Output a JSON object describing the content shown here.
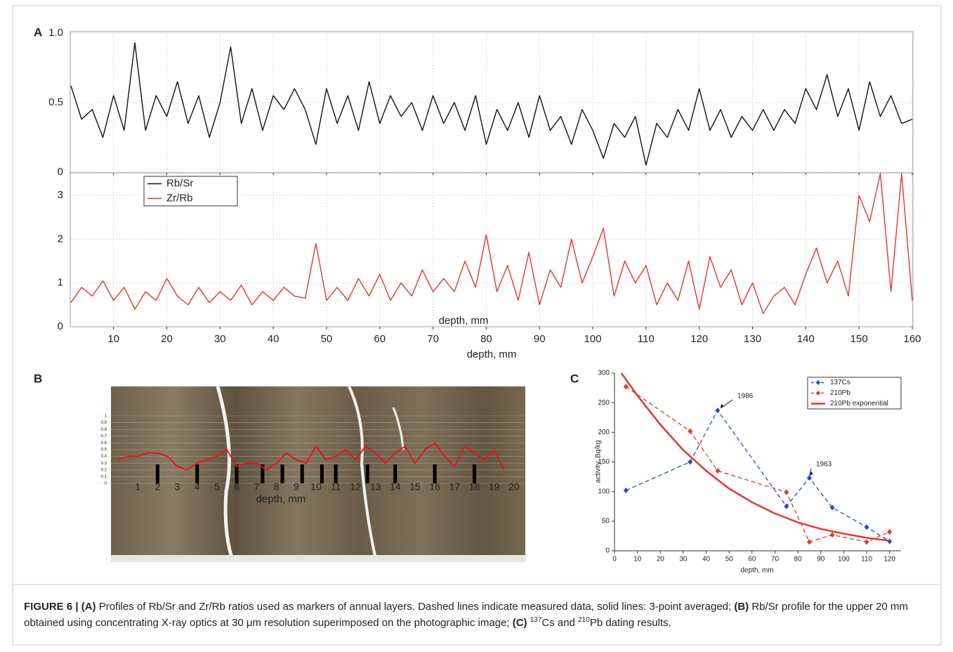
{
  "chart_data": [
    {
      "type": "line",
      "panel": "A",
      "x": [
        2,
        4,
        6,
        8,
        10,
        12,
        14,
        16,
        18,
        20,
        22,
        24,
        26,
        28,
        30,
        32,
        34,
        36,
        38,
        40,
        42,
        44,
        46,
        48,
        50,
        52,
        54,
        56,
        58,
        60,
        62,
        64,
        66,
        68,
        70,
        72,
        74,
        76,
        78,
        80,
        82,
        84,
        86,
        88,
        90,
        92,
        94,
        96,
        98,
        100,
        102,
        104,
        106,
        108,
        110,
        112,
        114,
        116,
        118,
        120,
        122,
        124,
        126,
        128,
        130,
        132,
        134,
        136,
        138,
        140,
        142,
        144,
        146,
        148,
        150,
        152,
        154,
        156,
        158,
        160
      ],
      "series": [
        {
          "name": "Rb/Sr",
          "color": "#111111",
          "values": [
            0.62,
            0.38,
            0.45,
            0.25,
            0.55,
            0.3,
            0.93,
            0.3,
            0.55,
            0.4,
            0.65,
            0.35,
            0.55,
            0.25,
            0.5,
            0.9,
            0.35,
            0.6,
            0.3,
            0.55,
            0.45,
            0.6,
            0.45,
            0.2,
            0.6,
            0.35,
            0.55,
            0.3,
            0.65,
            0.35,
            0.55,
            0.4,
            0.5,
            0.3,
            0.55,
            0.35,
            0.5,
            0.3,
            0.55,
            0.2,
            0.45,
            0.3,
            0.5,
            0.25,
            0.55,
            0.3,
            0.4,
            0.2,
            0.45,
            0.3,
            0.1,
            0.35,
            0.25,
            0.4,
            0.05,
            0.35,
            0.25,
            0.45,
            0.3,
            0.6,
            0.3,
            0.45,
            0.25,
            0.4,
            0.3,
            0.45,
            0.3,
            0.45,
            0.35,
            0.6,
            0.45,
            0.7,
            0.4,
            0.6,
            0.3,
            0.65,
            0.4,
            0.55,
            0.35,
            0.38
          ]
        }
      ],
      "xlim": [
        2,
        160
      ],
      "ylim": [
        0,
        1
      ],
      "yticks": [
        0,
        0.5,
        {
          "value": 1,
          "label": "1.0"
        }
      ],
      "grid": true
    },
    {
      "type": "line",
      "x": [
        2,
        4,
        6,
        8,
        10,
        12,
        14,
        16,
        18,
        20,
        22,
        24,
        26,
        28,
        30,
        32,
        34,
        36,
        38,
        40,
        42,
        44,
        46,
        48,
        50,
        52,
        54,
        56,
        58,
        60,
        62,
        64,
        66,
        68,
        70,
        72,
        74,
        76,
        78,
        80,
        82,
        84,
        86,
        88,
        90,
        92,
        94,
        96,
        98,
        100,
        102,
        104,
        106,
        108,
        110,
        112,
        114,
        116,
        118,
        120,
        122,
        124,
        126,
        128,
        130,
        132,
        134,
        136,
        138,
        140,
        142,
        144,
        146,
        148,
        150,
        152,
        154,
        156,
        158,
        160
      ],
      "series": [
        {
          "name": "Zr/Rb",
          "color": "#e2382b",
          "values": [
            0.55,
            0.9,
            0.7,
            1.05,
            0.6,
            0.9,
            0.4,
            0.8,
            0.6,
            1.1,
            0.7,
            0.5,
            0.9,
            0.55,
            0.8,
            0.6,
            0.95,
            0.5,
            0.8,
            0.6,
            0.9,
            0.7,
            0.65,
            1.9,
            0.6,
            0.9,
            0.6,
            1.1,
            0.7,
            1.2,
            0.6,
            1.0,
            0.7,
            1.3,
            0.8,
            1.1,
            0.8,
            1.5,
            0.9,
            2.1,
            0.8,
            1.4,
            0.6,
            1.7,
            0.5,
            1.3,
            0.9,
            2.0,
            1.0,
            1.6,
            2.25,
            0.7,
            1.5,
            1.0,
            1.4,
            0.5,
            1.0,
            0.6,
            1.5,
            0.4,
            1.6,
            0.9,
            1.3,
            0.5,
            1.0,
            0.3,
            0.7,
            0.9,
            0.5,
            1.2,
            1.8,
            1.0,
            1.5,
            0.7,
            3.0,
            2.4,
            3.5,
            0.8,
            3.5,
            0.6
          ]
        }
      ],
      "xlim": [
        2,
        160
      ],
      "xticks": [
        10,
        20,
        30,
        40,
        50,
        60,
        70,
        80,
        90,
        100,
        110,
        120,
        130,
        140,
        150,
        160
      ],
      "ylim": [
        0,
        3.5
      ],
      "yticks": [
        0,
        1,
        2,
        3
      ],
      "grid": true,
      "xlabel": "depth, mm",
      "inner_label": "depth, mm",
      "legend": "upper left"
    },
    {
      "type": "line",
      "panel": "B",
      "x": [
        0,
        0.5,
        1,
        1.5,
        2,
        2.5,
        3,
        3.5,
        4,
        4.5,
        5,
        5.5,
        6,
        6.5,
        7,
        7.5,
        8,
        8.5,
        9,
        9.5,
        10,
        10.5,
        11,
        11.5,
        12,
        12.5,
        13,
        13.5,
        14,
        14.5,
        15,
        15.5,
        16,
        16.5,
        17,
        17.5,
        18,
        18.5,
        19,
        19.5
      ],
      "series": [
        {
          "color": "#e3171b",
          "values": [
            0.35,
            0.4,
            0.4,
            0.45,
            0.45,
            0.4,
            0.25,
            0.2,
            0.3,
            0.35,
            0.4,
            0.5,
            0.25,
            0.3,
            0.3,
            0.2,
            0.3,
            0.45,
            0.35,
            0.3,
            0.55,
            0.35,
            0.4,
            0.5,
            0.35,
            0.55,
            0.45,
            0.3,
            0.45,
            0.55,
            0.3,
            0.5,
            0.6,
            0.4,
            0.25,
            0.55,
            0.45,
            0.35,
            0.5,
            0.2
          ]
        }
      ],
      "layer_marks": [
        2,
        4,
        6,
        7.3,
        8.3,
        9.3,
        10.3,
        11,
        12.6,
        14,
        16,
        18
      ],
      "xlim": [
        0,
        20.5
      ],
      "xticks": [
        1,
        2,
        3,
        4,
        5,
        6,
        7,
        8,
        9,
        10,
        11,
        12,
        13,
        14,
        15,
        16,
        17,
        18,
        19,
        20
      ],
      "ylim": [
        0,
        1
      ],
      "yticks": [
        0,
        0.1,
        0.2,
        0.3,
        0.4,
        0.5,
        0.6,
        0.7,
        0.8,
        0.9,
        1
      ],
      "grid": true,
      "xlabel": "depth, mm"
    },
    {
      "type": "line",
      "panel": "C",
      "series": [
        {
          "name": "137Cs",
          "color": "#2448d8",
          "dash": true,
          "marker": "diamond",
          "x": [
            5,
            33,
            45,
            75,
            85,
            95,
            110,
            120
          ],
          "values": [
            102,
            150,
            237,
            75,
            123,
            73,
            40,
            16
          ]
        },
        {
          "name": "210Pb",
          "color": "#e2382b",
          "dash": true,
          "marker": "diamond",
          "x": [
            5,
            33,
            45,
            75,
            85,
            95,
            110,
            120
          ],
          "values": [
            277,
            202,
            135,
            99,
            15,
            27,
            15,
            32
          ]
        },
        {
          "name": "210Pb exponential",
          "color": "#e2382b",
          "dash": false,
          "x": [
            3,
            10,
            20,
            30,
            40,
            50,
            60,
            70,
            80,
            90,
            100,
            110,
            120
          ],
          "values": [
            300,
            262,
            213,
            170,
            135,
            105,
            82,
            63,
            48,
            37,
            29,
            22,
            17
          ]
        }
      ],
      "annotations": [
        "1986",
        "1963"
      ],
      "xlim": [
        0,
        125
      ],
      "xticks": [
        0,
        10,
        20,
        30,
        40,
        50,
        60,
        70,
        80,
        90,
        100,
        110,
        120
      ],
      "ylim": [
        0,
        300
      ],
      "yticks": [
        0,
        50,
        100,
        150,
        200,
        250,
        300
      ],
      "grid": false,
      "xlabel": "depth, mm",
      "ylabel": "activity, Bq/kg",
      "legend": "upper right"
    }
  ],
  "caption": [
    {
      "text": "FIGURE 6 | (A)",
      "style": "bold"
    },
    {
      "text": " Profiles of Rb/Sr and Zr/Rb ratios used as markers of annual layers. Dashed lines indicate measured data, solid lines: 3-point averaged; ",
      "style": "plain"
    },
    {
      "text": "(B)",
      "style": "bold"
    },
    {
      "text": " Rb/Sr profile for the upper 20 mm obtained using concentrating X-ray optics at 30 μm resolution superimposed on the photographic image; ",
      "style": "plain"
    },
    {
      "text": "(C) ",
      "style": "bold"
    },
    {
      "text": "137",
      "style": "sup"
    },
    {
      "text": "Cs and ",
      "style": "plain"
    },
    {
      "text": "210",
      "style": "sup"
    },
    {
      "text": "Pb dating results.",
      "style": "plain"
    }
  ]
}
